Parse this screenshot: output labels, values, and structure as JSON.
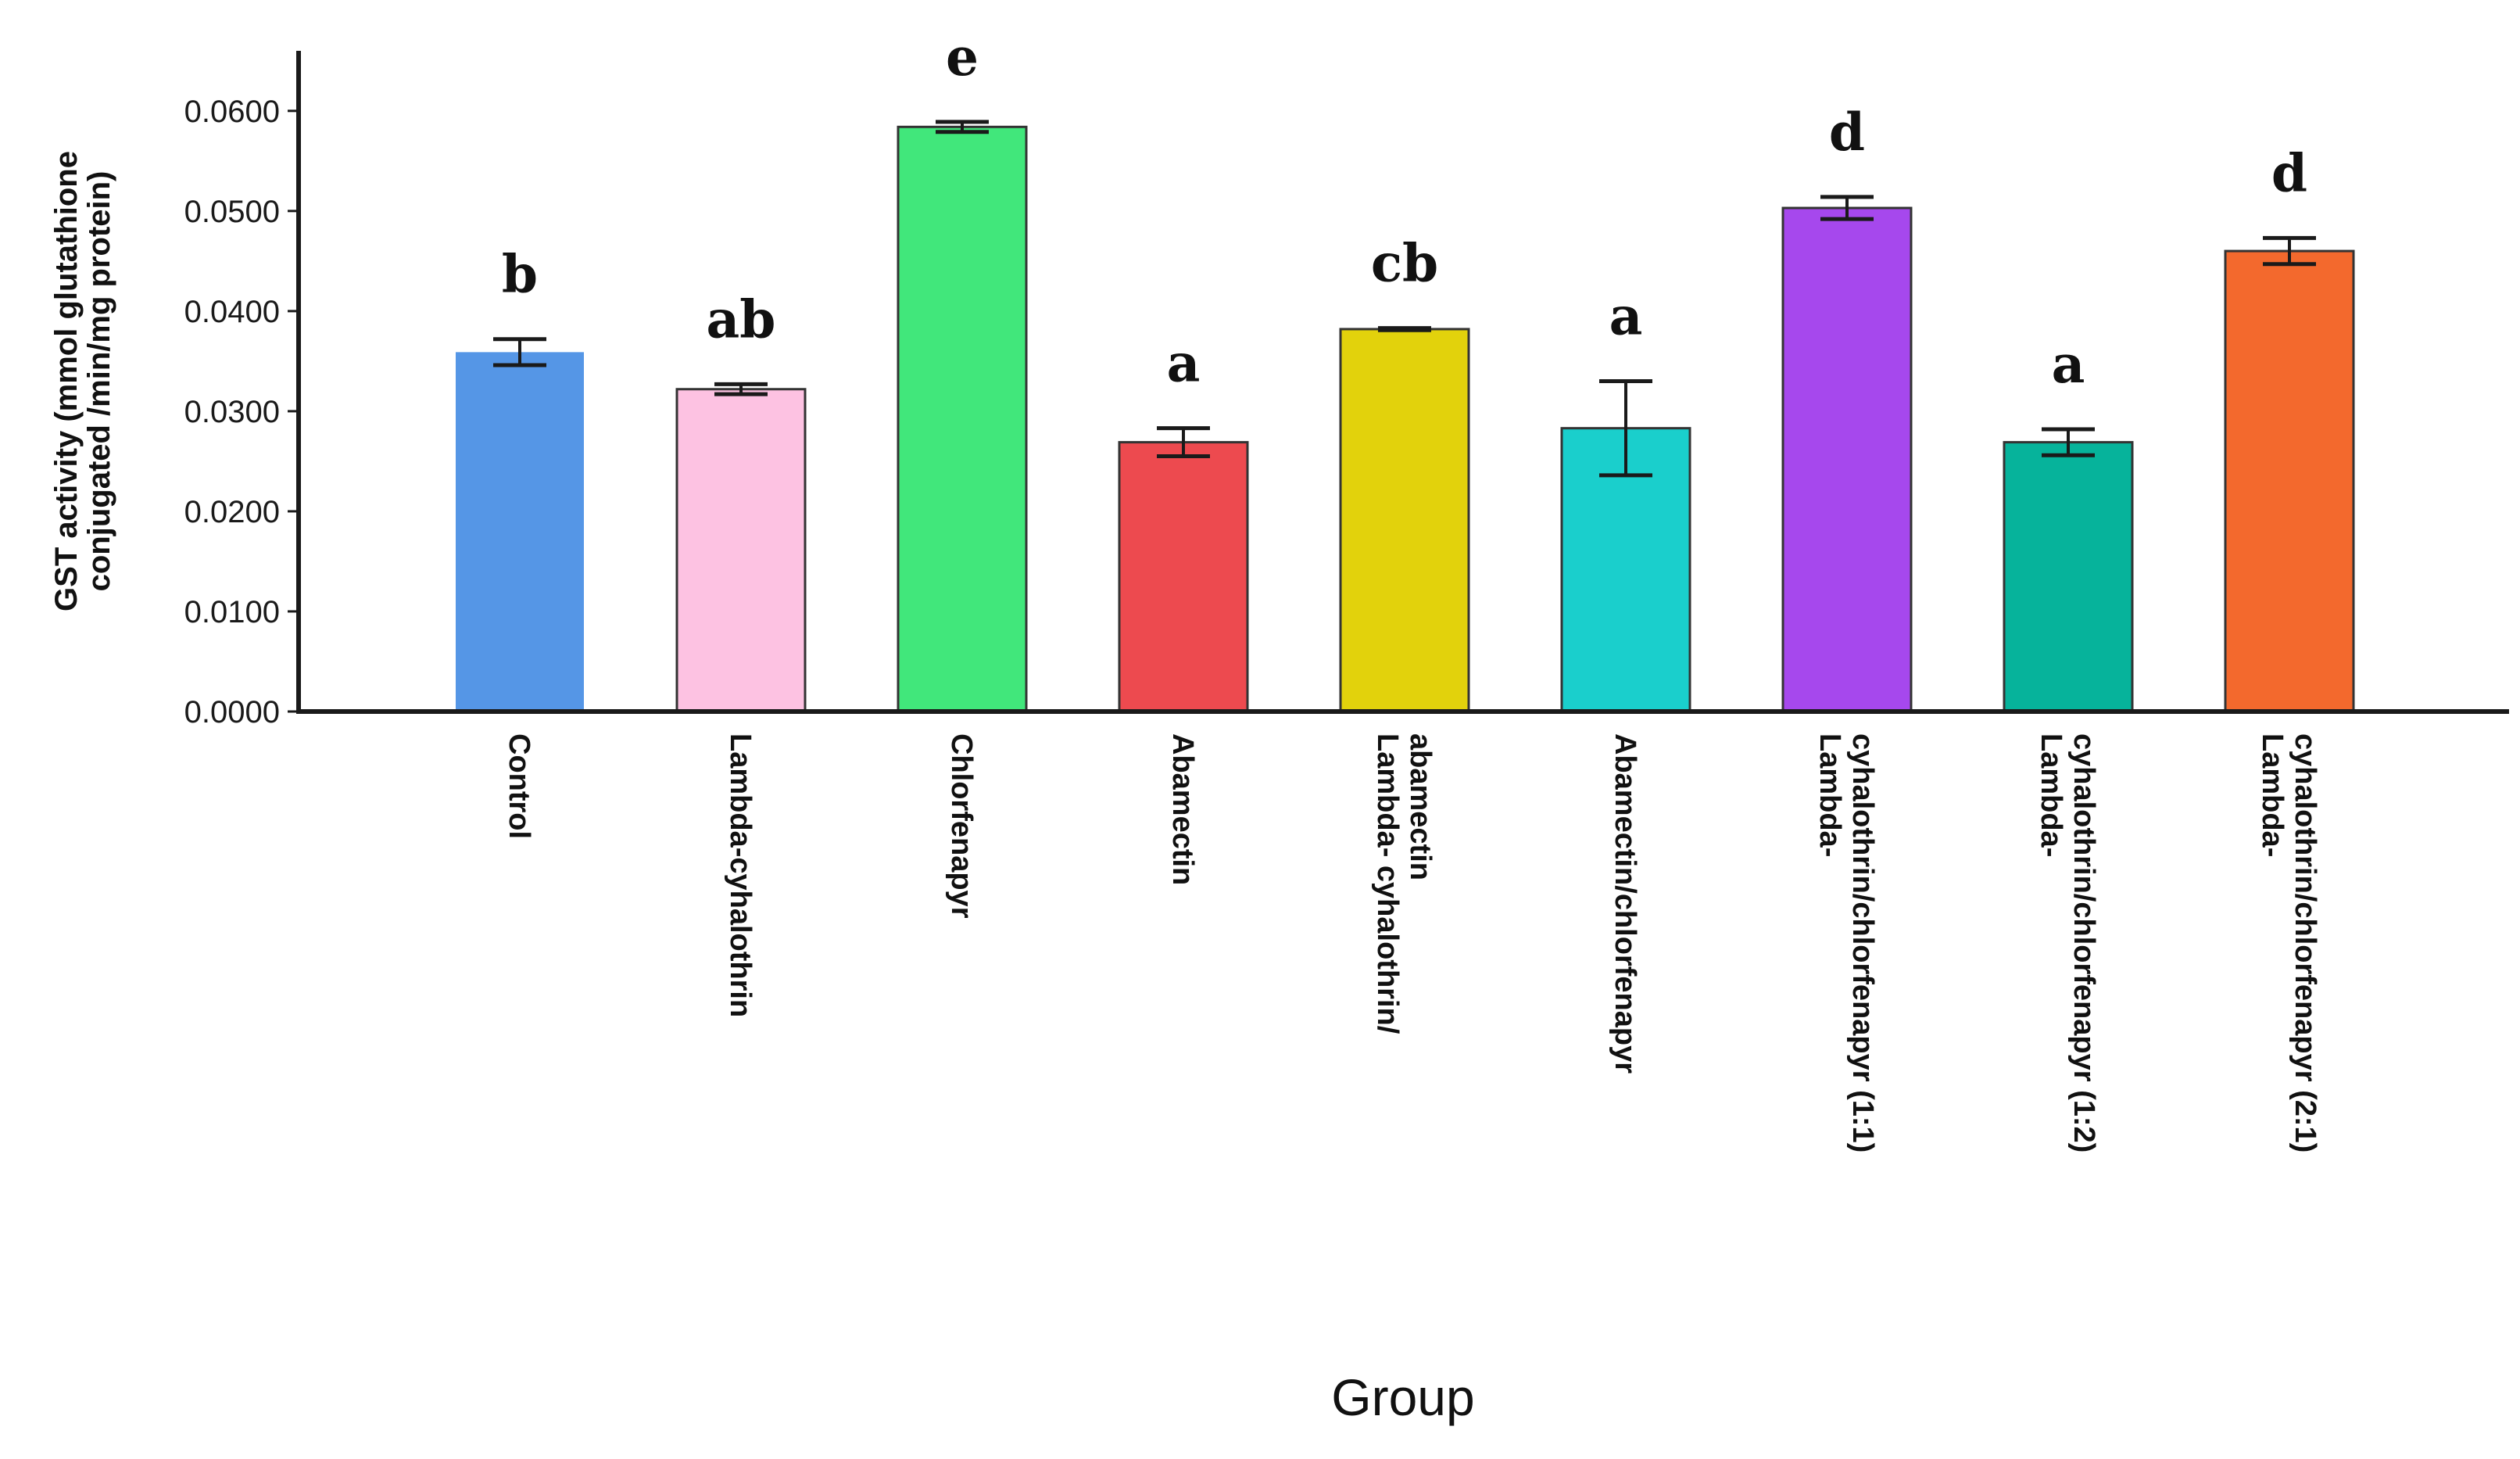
{
  "chart_data": {
    "type": "bar",
    "title": "",
    "xlabel": "Group",
    "ylabel_lines": [
      "GST activity (mmol glutathione",
      "conjugated /min/mg protein)"
    ],
    "ylim": [
      0,
      0.066
    ],
    "yticks": [
      {
        "value": 0.0,
        "label": "0.0000"
      },
      {
        "value": 0.01,
        "label": "0.0100"
      },
      {
        "value": 0.02,
        "label": "0.0200"
      },
      {
        "value": 0.03,
        "label": "0.0300"
      },
      {
        "value": 0.04,
        "label": "0.0400"
      },
      {
        "value": 0.05,
        "label": "0.0500"
      },
      {
        "value": 0.06,
        "label": "0.0600"
      }
    ],
    "categories": [
      {
        "lines": [
          "Control"
        ]
      },
      {
        "lines": [
          "Lambda-cyhalothrin"
        ]
      },
      {
        "lines": [
          "Chlorfenapyr"
        ]
      },
      {
        "lines": [
          "Abamectin"
        ]
      },
      {
        "lines": [
          "Lambda- cyhalothrin/",
          "abamectin"
        ]
      },
      {
        "lines": [
          "Abamectin/chlorfenapyr"
        ]
      },
      {
        "lines": [
          "Lambda-",
          "cyhalothrin/chlorfenapyr (1:1)"
        ]
      },
      {
        "lines": [
          "Lambda-",
          "cyhalothrin/chlorfenapyr (1:2)"
        ]
      },
      {
        "lines": [
          "Lambda-",
          "cyhalothrin/chlorfenapyr (2:1)"
        ]
      }
    ],
    "values": [
      0.0359,
      0.0322,
      0.0584,
      0.0269,
      0.0382,
      0.0283,
      0.0503,
      0.0269,
      0.046
    ],
    "errors": [
      0.0013,
      0.0005,
      0.0005,
      0.0014,
      0.0001,
      0.0047,
      0.0011,
      0.0013,
      0.0013
    ],
    "significance": [
      "b",
      "ab",
      "e",
      "a",
      "cb",
      "a",
      "d",
      "a",
      "d"
    ],
    "colors": [
      "#5596e6",
      "#fdc2e2",
      "#41e77b",
      "#ed4a4f",
      "#e2d20c",
      "#1acfcc",
      "#a648ed",
      "#06b39b",
      "#f3692d"
    ]
  }
}
